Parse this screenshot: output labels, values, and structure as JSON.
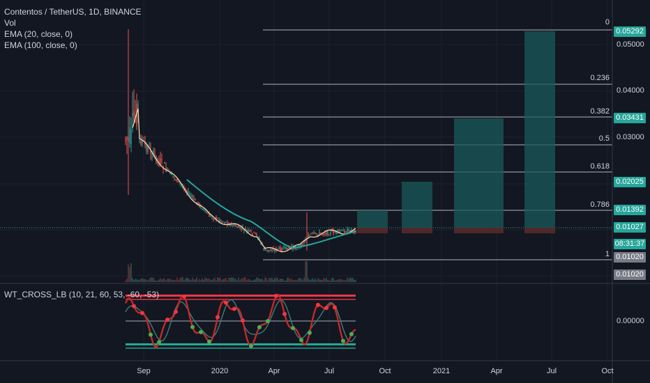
{
  "chart_title": "Contentos / TetherUS, 1D, BINANCE",
  "indicators": {
    "vol": "Vol",
    "ema20": "EMA (20, close, 0)",
    "ema100": "EMA (100, close, 0)",
    "oscillator": "WT_CROSS_LB (10, 21, 60, 53, -60, -53)"
  },
  "price_axis": {
    "ticks": [
      "0.05000",
      "0.04000",
      "0.03000"
    ],
    "oscillator_tick": "0.00000"
  },
  "price_tags": [
    {
      "label": "0.05292",
      "color": "#26a69a"
    },
    {
      "label": "0.03431",
      "color": "#26a69a"
    },
    {
      "label": "0.02025",
      "color": "#26a69a"
    },
    {
      "label": "0.01392",
      "color": "#26a69a"
    },
    {
      "label": "0.01027",
      "color": "#26a69a"
    },
    {
      "label": "08:31:37",
      "color": "#26a69a"
    },
    {
      "label": "0.01020",
      "color": "#787b86"
    },
    {
      "label": "0.01020",
      "color": "#787b86"
    }
  ],
  "fib_levels": [
    {
      "ratio": "0"
    },
    {
      "ratio": "0.236"
    },
    {
      "ratio": "0.382"
    },
    {
      "ratio": "0.5"
    },
    {
      "ratio": "0.618"
    },
    {
      "ratio": "0.786"
    },
    {
      "ratio": "1"
    }
  ],
  "time_axis": {
    "labels": [
      "Sep",
      "2020",
      "Apr",
      "Jul",
      "Oct",
      "2021",
      "Apr",
      "Jul",
      "Oct"
    ]
  },
  "colors": {
    "background": "#131722",
    "up": "#26a69a",
    "down": "#ef5350",
    "ema20": "#f5d9a8",
    "ema100": "#26a69a",
    "target_box": "#1a5a5a",
    "stop_box": "#5a2a2a"
  }
}
